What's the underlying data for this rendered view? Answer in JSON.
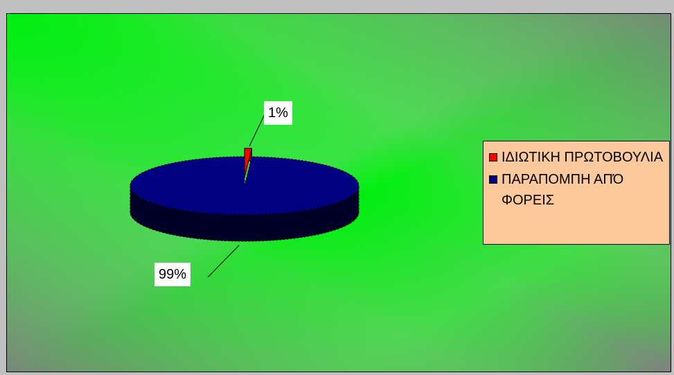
{
  "chart_data": {
    "type": "pie",
    "style": "3d-pie",
    "slices": [
      {
        "label": "ΙΔΙΩΤΙΚΗ ΠΡΩΤΟΒΟΥΛΙΑ",
        "value": 1,
        "display": "1%",
        "color": "#ff0000"
      },
      {
        "label": "ΠΑΡΑΠΟΜΠΗ ΑΠΌ ΦΟΡΕΙΣ",
        "value": 99,
        "display": "99%",
        "color": "#000080"
      }
    ],
    "legend_position": "right",
    "background": {
      "gradient_from": "#808080",
      "gradient_mid": "#00ff00",
      "gradient_to": "#808080"
    },
    "legend_background": "#fcc99d"
  }
}
